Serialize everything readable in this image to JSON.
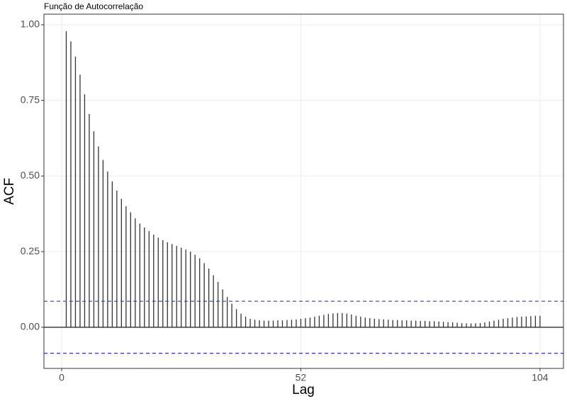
{
  "chart_data": {
    "type": "stem",
    "title": "Função de Autocorrelação",
    "x_label": "Lag",
    "y_label": "ACF",
    "x": [
      1,
      2,
      3,
      4,
      5,
      6,
      7,
      8,
      9,
      10,
      11,
      12,
      13,
      14,
      15,
      16,
      17,
      18,
      19,
      20,
      21,
      22,
      23,
      24,
      25,
      26,
      27,
      28,
      29,
      30,
      31,
      32,
      33,
      34,
      35,
      36,
      37,
      38,
      39,
      40,
      41,
      42,
      43,
      44,
      45,
      46,
      47,
      48,
      49,
      50,
      51,
      52,
      53,
      54,
      55,
      56,
      57,
      58,
      59,
      60,
      61,
      62,
      63,
      64,
      65,
      66,
      67,
      68,
      69,
      70,
      71,
      72,
      73,
      74,
      75,
      76,
      77,
      78,
      79,
      80,
      81,
      82,
      83,
      84,
      85,
      86,
      87,
      88,
      89,
      90,
      91,
      92,
      93,
      94,
      95,
      96,
      97,
      98,
      99,
      100,
      101,
      102,
      103,
      104
    ],
    "values": [
      0.979,
      0.945,
      0.895,
      0.835,
      0.77,
      0.705,
      0.648,
      0.598,
      0.553,
      0.515,
      0.482,
      0.452,
      0.425,
      0.4,
      0.38,
      0.36,
      0.343,
      0.33,
      0.318,
      0.306,
      0.296,
      0.288,
      0.281,
      0.275,
      0.269,
      0.263,
      0.257,
      0.25,
      0.24,
      0.228,
      0.212,
      0.194,
      0.172,
      0.15,
      0.125,
      0.1,
      0.078,
      0.06,
      0.045,
      0.035,
      0.028,
      0.025,
      0.023,
      0.022,
      0.022,
      0.022,
      0.023,
      0.023,
      0.024,
      0.025,
      0.026,
      0.028,
      0.03,
      0.032,
      0.035,
      0.038,
      0.041,
      0.044,
      0.046,
      0.047,
      0.047,
      0.045,
      0.042,
      0.038,
      0.035,
      0.032,
      0.03,
      0.028,
      0.027,
      0.026,
      0.025,
      0.024,
      0.024,
      0.023,
      0.023,
      0.022,
      0.022,
      0.021,
      0.021,
      0.02,
      0.02,
      0.019,
      0.018,
      0.017,
      0.016,
      0.015,
      0.014,
      0.013,
      0.013,
      0.013,
      0.014,
      0.016,
      0.019,
      0.022,
      0.025,
      0.028,
      0.03,
      0.032,
      0.034,
      0.035,
      0.036,
      0.037,
      0.038,
      0.038
    ],
    "color": "#333333",
    "conf_limits": [
      0.086,
      -0.086
    ],
    "conf_color": "#3333ee",
    "xlim": [
      -3.85,
      109.1
    ],
    "xticks": [
      0,
      52,
      104
    ],
    "ylim": [
      -0.136,
      1.035
    ],
    "yticks": [
      {
        "value": 0,
        "label": "0.00"
      },
      {
        "value": 0.25,
        "label": "0.25"
      },
      {
        "value": 0.5,
        "label": "0.50"
      },
      {
        "value": 0.75,
        "label": "0.75"
      },
      {
        "value": 1,
        "label": "1.00"
      }
    ],
    "grid": true
  }
}
